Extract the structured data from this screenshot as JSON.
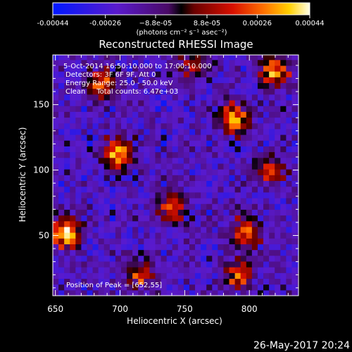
{
  "chart_data": {
    "type": "heatmap",
    "title": "Reconstructed RHESSI Image",
    "xlabel": "Heliocentric X (arcsec)",
    "ylabel": "Heliocentric Y (arcsec)",
    "xlim": [
      648,
      838
    ],
    "ylim": [
      4,
      188
    ],
    "x_ticks": [
      650,
      700,
      750,
      800
    ],
    "y_ticks": [
      50,
      100,
      150
    ],
    "colorbar": {
      "range": [
        -0.00044,
        0.00044
      ],
      "tick_values": [
        -0.00044,
        -0.00026,
        -8.8e-05,
        8.8e-05,
        0.00026,
        0.00044
      ],
      "tick_labels": [
        "-0.00044",
        "-0.00026",
        "−8.8e-05",
        "8.8e-05",
        "0.00026",
        "0.00044"
      ],
      "units": "(photons cm⁻² s⁻¹ asec⁻²)"
    },
    "annotations": {
      "time": "5-Oct-2014 16:50:10.000 to 17:00:10.000",
      "detectors": "Detectors: 3F 6F 9F, Att 0",
      "energy": "Energy Range: 25.0 - 50.0 keV",
      "clean": "Clean     Total counts: 6.47e+03",
      "peak": "Position of Peak = [652,55]"
    },
    "peak_position": [
      652,
      55
    ],
    "bright_sources": [
      {
        "x": 658,
        "y": 52,
        "value": 0.00044
      },
      {
        "x": 698,
        "y": 113,
        "value": 0.00036
      },
      {
        "x": 788,
        "y": 140,
        "value": 0.00032
      },
      {
        "x": 820,
        "y": 175,
        "value": 0.0003
      },
      {
        "x": 686,
        "y": 166,
        "value": 0.00024
      },
      {
        "x": 740,
        "y": 72,
        "value": 0.00022
      },
      {
        "x": 797,
        "y": 52,
        "value": 0.00024
      },
      {
        "x": 815,
        "y": 100,
        "value": 0.00018
      },
      {
        "x": 792,
        "y": 20,
        "value": 0.0002
      },
      {
        "x": 716,
        "y": 20,
        "value": 0.00016
      },
      {
        "x": 755,
        "y": 180,
        "value": 0.00014
      }
    ]
  },
  "footer": {
    "timestamp": "26-May-2017 20:24"
  }
}
